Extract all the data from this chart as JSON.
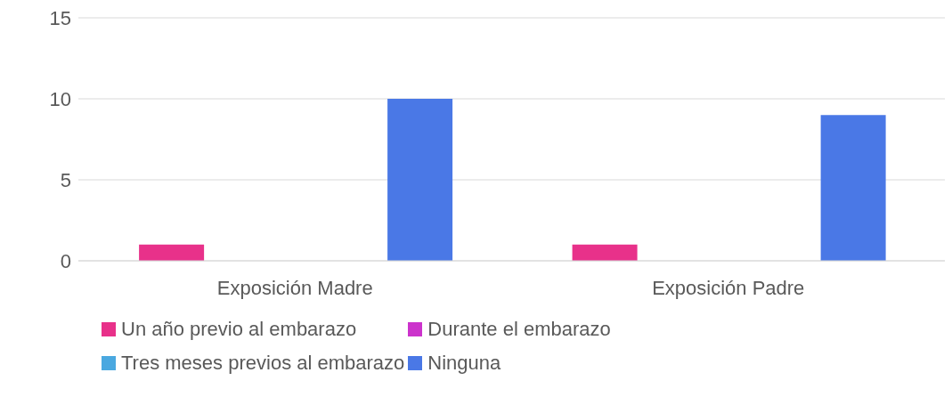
{
  "chart_data": {
    "type": "bar",
    "categories": [
      "Exposición Madre",
      "Exposición Padre"
    ],
    "series": [
      {
        "name": "Un año previo al embarazo",
        "color": "#e8318a",
        "values": [
          1,
          1
        ]
      },
      {
        "name": "Durante el embarazo",
        "color": "#cc33cc",
        "values": [
          0,
          0
        ]
      },
      {
        "name": "Tres meses previos al embarazo",
        "color": "#4aa8e0",
        "values": [
          0,
          0
        ]
      },
      {
        "name": "Ninguna",
        "color": "#4a78e6",
        "values": [
          10,
          9
        ]
      }
    ],
    "ylim": [
      0,
      15
    ],
    "yticks": [
      0,
      5,
      10,
      15
    ],
    "grid": "y",
    "legend": "bottom"
  }
}
